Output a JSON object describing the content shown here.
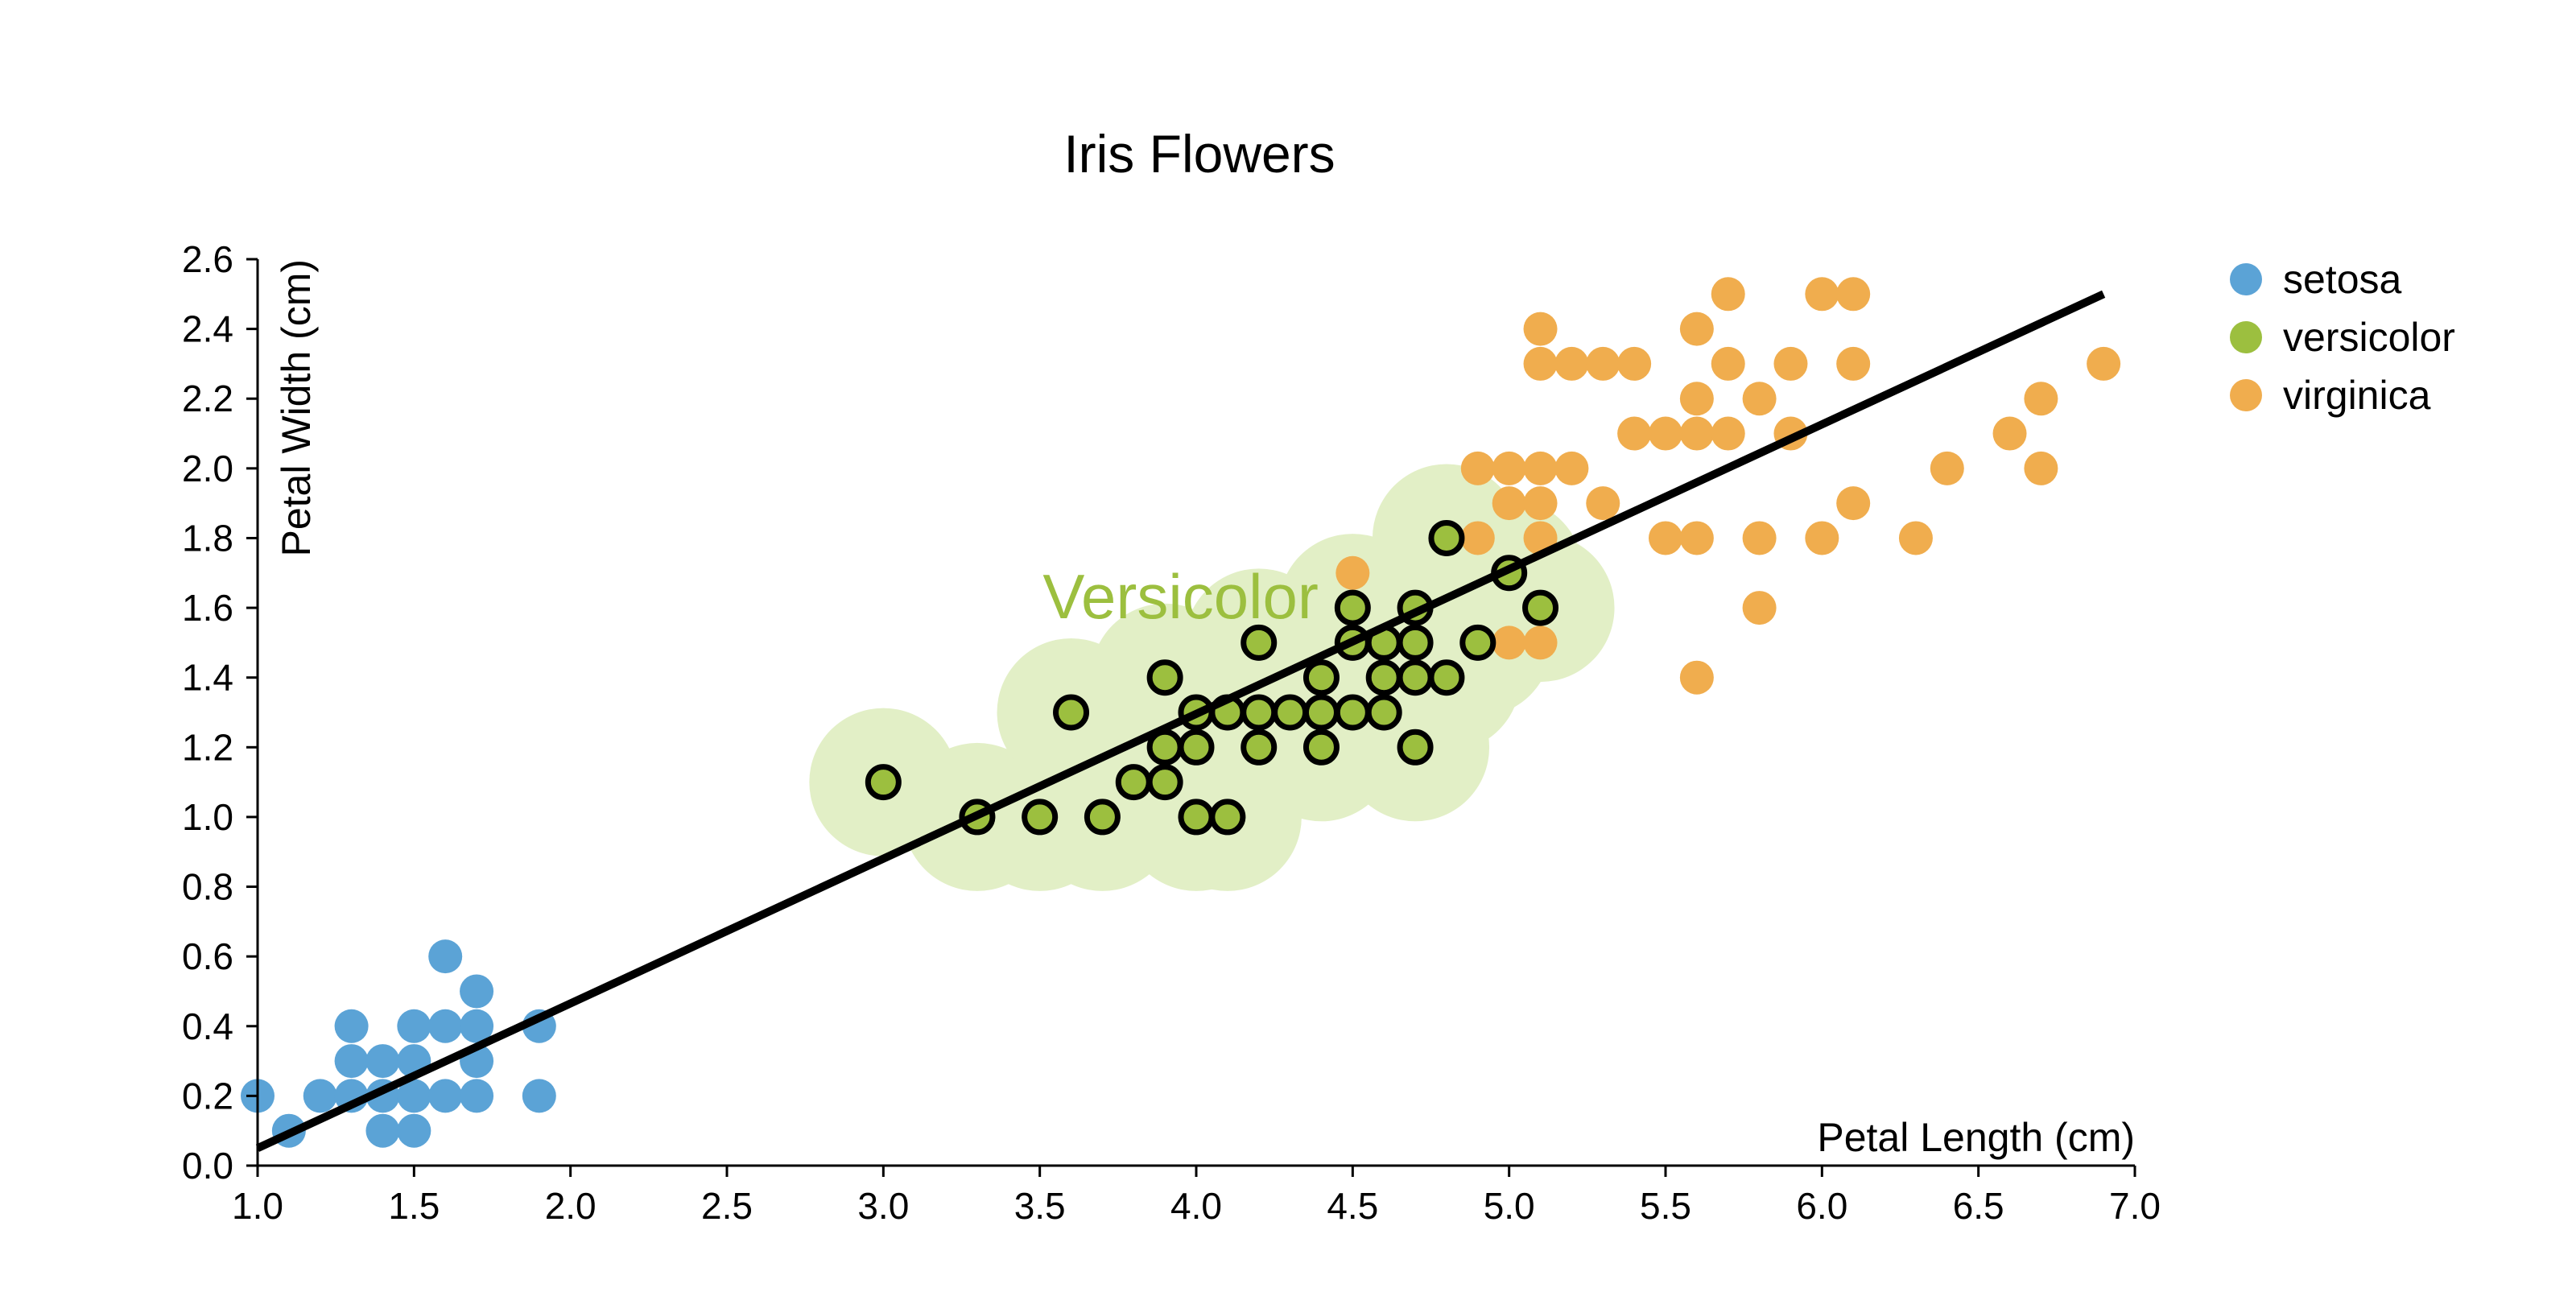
{
  "chart_data": {
    "type": "scatter",
    "title": "Iris Flowers",
    "xlabel": "Petal Length (cm)",
    "ylabel": "Petal Width (cm)",
    "xlim": [
      1.0,
      7.0
    ],
    "ylim": [
      0.0,
      2.6
    ],
    "xticks": [
      "1.0",
      "1.5",
      "2.0",
      "2.5",
      "3.0",
      "3.5",
      "4.0",
      "4.5",
      "5.0",
      "5.5",
      "6.0",
      "6.5",
      "7.0"
    ],
    "yticks": [
      "0.0",
      "0.2",
      "0.4",
      "0.6",
      "0.8",
      "1.0",
      "1.2",
      "1.4",
      "1.6",
      "1.8",
      "2.0",
      "2.2",
      "2.4",
      "2.6"
    ],
    "grid": false,
    "legend_position": "top-right",
    "highlighted_series": "versicolor",
    "annotation": {
      "text": "Versicolor",
      "x": 3.95,
      "y": 1.63,
      "color": "#9cbf3f"
    },
    "regression_line": {
      "x": [
        1.0,
        6.9
      ],
      "y": [
        0.05,
        2.5
      ]
    },
    "series": [
      {
        "name": "setosa",
        "color": "#5ba3d6",
        "points": [
          [
            1.0,
            0.2
          ],
          [
            1.1,
            0.1
          ],
          [
            1.2,
            0.2
          ],
          [
            1.3,
            0.2
          ],
          [
            1.3,
            0.3
          ],
          [
            1.3,
            0.4
          ],
          [
            1.4,
            0.1
          ],
          [
            1.4,
            0.2
          ],
          [
            1.4,
            0.3
          ],
          [
            1.5,
            0.1
          ],
          [
            1.5,
            0.2
          ],
          [
            1.5,
            0.3
          ],
          [
            1.5,
            0.4
          ],
          [
            1.6,
            0.2
          ],
          [
            1.6,
            0.4
          ],
          [
            1.6,
            0.6
          ],
          [
            1.7,
            0.2
          ],
          [
            1.7,
            0.3
          ],
          [
            1.7,
            0.4
          ],
          [
            1.7,
            0.5
          ],
          [
            1.9,
            0.2
          ],
          [
            1.9,
            0.4
          ]
        ]
      },
      {
        "name": "versicolor",
        "color": "#9cbf3f",
        "points": [
          [
            3.0,
            1.1
          ],
          [
            3.3,
            1.0
          ],
          [
            3.5,
            1.0
          ],
          [
            3.6,
            1.3
          ],
          [
            3.7,
            1.0
          ],
          [
            3.8,
            1.1
          ],
          [
            3.9,
            1.1
          ],
          [
            3.9,
            1.2
          ],
          [
            3.9,
            1.4
          ],
          [
            4.0,
            1.0
          ],
          [
            4.0,
            1.2
          ],
          [
            4.0,
            1.3
          ],
          [
            4.1,
            1.0
          ],
          [
            4.1,
            1.3
          ],
          [
            4.2,
            1.2
          ],
          [
            4.2,
            1.3
          ],
          [
            4.2,
            1.5
          ],
          [
            4.3,
            1.3
          ],
          [
            4.4,
            1.2
          ],
          [
            4.4,
            1.3
          ],
          [
            4.4,
            1.4
          ],
          [
            4.5,
            1.3
          ],
          [
            4.5,
            1.5
          ],
          [
            4.5,
            1.6
          ],
          [
            4.6,
            1.3
          ],
          [
            4.6,
            1.4
          ],
          [
            4.6,
            1.5
          ],
          [
            4.7,
            1.2
          ],
          [
            4.7,
            1.4
          ],
          [
            4.7,
            1.5
          ],
          [
            4.7,
            1.6
          ],
          [
            4.8,
            1.4
          ],
          [
            4.8,
            1.8
          ],
          [
            4.9,
            1.5
          ],
          [
            5.0,
            1.7
          ],
          [
            5.1,
            1.6
          ]
        ]
      },
      {
        "name": "virginica",
        "color": "#f0ad4e",
        "points": [
          [
            4.5,
            1.7
          ],
          [
            4.9,
            1.8
          ],
          [
            4.9,
            2.0
          ],
          [
            5.0,
            1.5
          ],
          [
            5.0,
            1.9
          ],
          [
            5.0,
            2.0
          ],
          [
            5.1,
            1.5
          ],
          [
            5.1,
            1.8
          ],
          [
            5.1,
            1.9
          ],
          [
            5.1,
            2.0
          ],
          [
            5.1,
            2.3
          ],
          [
            5.1,
            2.4
          ],
          [
            5.2,
            2.0
          ],
          [
            5.2,
            2.3
          ],
          [
            5.3,
            1.9
          ],
          [
            5.3,
            2.3
          ],
          [
            5.4,
            2.1
          ],
          [
            5.4,
            2.3
          ],
          [
            5.5,
            1.8
          ],
          [
            5.5,
            2.1
          ],
          [
            5.6,
            1.4
          ],
          [
            5.6,
            1.8
          ],
          [
            5.6,
            2.1
          ],
          [
            5.6,
            2.2
          ],
          [
            5.6,
            2.4
          ],
          [
            5.7,
            2.1
          ],
          [
            5.7,
            2.3
          ],
          [
            5.7,
            2.5
          ],
          [
            5.8,
            1.6
          ],
          [
            5.8,
            1.8
          ],
          [
            5.8,
            2.2
          ],
          [
            5.9,
            2.1
          ],
          [
            5.9,
            2.3
          ],
          [
            6.0,
            1.8
          ],
          [
            6.0,
            2.5
          ],
          [
            6.1,
            1.9
          ],
          [
            6.1,
            2.3
          ],
          [
            6.1,
            2.5
          ],
          [
            6.3,
            1.8
          ],
          [
            6.4,
            2.0
          ],
          [
            6.6,
            2.1
          ],
          [
            6.7,
            2.0
          ],
          [
            6.7,
            2.2
          ],
          [
            6.9,
            2.3
          ]
        ]
      }
    ]
  }
}
